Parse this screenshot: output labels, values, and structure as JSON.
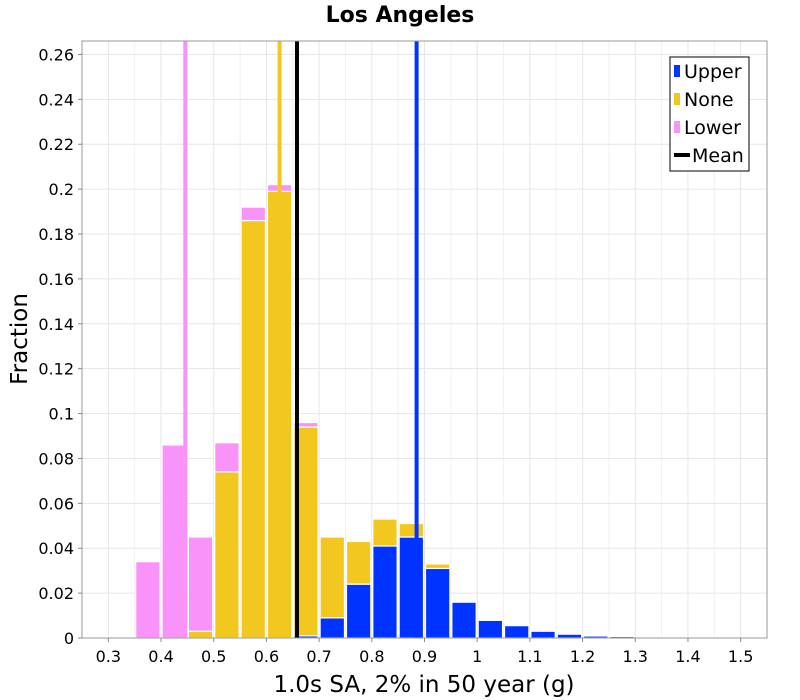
{
  "chart_data": {
    "type": "bar",
    "title": "Los Angeles",
    "xlabel": "1.0s SA, 2% in 50 year (g)",
    "ylabel": "Fraction",
    "xlim": [
      0.25,
      1.55
    ],
    "ylim": [
      0,
      0.266
    ],
    "xticks": [
      0.3,
      0.4,
      0.5,
      0.6,
      0.7,
      0.8,
      0.9,
      1.0,
      1.1,
      1.2,
      1.3,
      1.4,
      1.5
    ],
    "xtick_labels": [
      "0.3",
      "0.4",
      "0.5",
      "0.6",
      "0.7",
      "0.8",
      "0.9",
      "1",
      "1.1",
      "1.2",
      "1.3",
      "1.4",
      "1.5"
    ],
    "yticks": [
      0,
      0.02,
      0.04,
      0.06,
      0.08,
      0.1,
      0.12,
      0.14,
      0.16,
      0.18,
      0.2,
      0.22,
      0.24,
      0.26
    ],
    "ytick_labels": [
      "0",
      "0.02",
      "0.04",
      "0.06",
      "0.08",
      "0.1",
      "0.12",
      "0.14",
      "0.16",
      "0.18",
      "0.2",
      "0.22",
      "0.24",
      "0.26"
    ],
    "grid": true,
    "legend_position": "top-right",
    "bin_width": 0.05,
    "bin_centers": [
      0.325,
      0.375,
      0.425,
      0.475,
      0.525,
      0.575,
      0.625,
      0.675,
      0.725,
      0.775,
      0.825,
      0.875,
      0.925,
      0.975,
      1.025,
      1.075,
      1.125,
      1.175,
      1.225,
      1.275,
      1.325,
      1.375,
      1.425,
      1.475,
      1.525
    ],
    "series": [
      {
        "name": "Upper",
        "color": "#0033ff",
        "values": [
          0,
          0,
          0,
          0,
          0,
          0,
          0,
          0.001,
          0.009,
          0.024,
          0.041,
          0.045,
          0.031,
          0.016,
          0.008,
          0.0055,
          0.003,
          0.0017,
          0.0009,
          0.0007,
          0.0004,
          0.0003,
          0.0002,
          0.0001,
          0.0001
        ]
      },
      {
        "name": "None",
        "color": "#f2c71f",
        "values": [
          0,
          0,
          0,
          0.003,
          0.074,
          0.186,
          0.199,
          0.093,
          0.036,
          0.019,
          0.012,
          0.006,
          0.002,
          0.0005,
          0.0001,
          0,
          0,
          0,
          0,
          0,
          0,
          0,
          0,
          0,
          0
        ]
      },
      {
        "name": "Lower",
        "color": "#f993f9",
        "values": [
          0.0005,
          0.034,
          0.086,
          0.042,
          0.013,
          0.006,
          0.003,
          0.002,
          0,
          0,
          0,
          0,
          0,
          0,
          0,
          0,
          0,
          0,
          0,
          0,
          0,
          0,
          0,
          0,
          0
        ]
      }
    ],
    "vertical_lines": [
      {
        "name": "Upper",
        "x": 0.885,
        "color": "#0033ff"
      },
      {
        "name": "None",
        "x": 0.625,
        "color": "#f2c71f"
      },
      {
        "name": "Lower",
        "x": 0.446,
        "color": "#f993f9"
      },
      {
        "name": "Mean",
        "x": 0.658,
        "color": "#000000"
      }
    ],
    "legend": [
      {
        "label": "Upper",
        "color": "#0033ff",
        "symbol": "square"
      },
      {
        "label": "None",
        "color": "#f2c71f",
        "symbol": "square"
      },
      {
        "label": "Lower",
        "color": "#f993f9",
        "symbol": "square"
      },
      {
        "label": "Mean",
        "color": "#000000",
        "symbol": "line"
      }
    ]
  }
}
